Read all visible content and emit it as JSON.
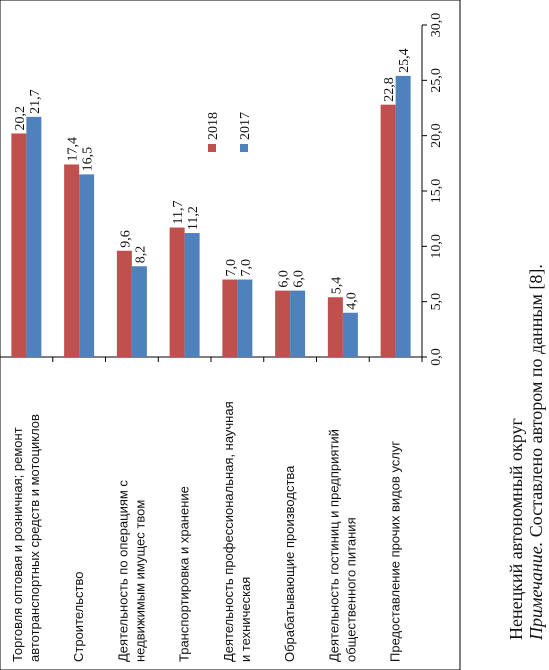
{
  "chart_data": {
    "type": "bar",
    "categories": [
      [
        "Торговля оптовая и розничная; ремонт",
        "автотранспортных  средств и мотоциклов"
      ],
      [
        "Строительство"
      ],
      [
        "Деятельность по операциям  с",
        "недвижимым имущес твом"
      ],
      [
        "Транспортировка  и хранение"
      ],
      [
        "Деятельность профессиональная, научная",
        "и техническая"
      ],
      [
        "Обрабатывающие производства"
      ],
      [
        "Деятельность гостиниц и предприятий",
        "общественного питания"
      ],
      [
        "Предоставление прочих видов услуг"
      ]
    ],
    "series": [
      {
        "name": "2018",
        "color": "#c0504d",
        "values": [
          20.2,
          17.4,
          9.6,
          11.7,
          7.0,
          6.0,
          5.4,
          22.8
        ],
        "labels": [
          "20,2",
          "17,4",
          "9,6",
          "11,7",
          "7,0",
          "6,0",
          "5,4",
          "22,8"
        ]
      },
      {
        "name": "2017",
        "color": "#4f81bd",
        "values": [
          21.7,
          16.5,
          8.2,
          11.2,
          7.0,
          6.0,
          4.0,
          25.4
        ],
        "labels": [
          "21,7",
          "16,5",
          "8,2",
          "11,2",
          "7,0",
          "6,0",
          "4,0",
          "25,4"
        ]
      }
    ],
    "ylim": [
      0,
      30
    ],
    "ticks": [
      0,
      5,
      10,
      15,
      20,
      25,
      30
    ],
    "tick_labels": [
      "0,0",
      "5,0",
      "10,0",
      "15,0",
      "20,0",
      "25,0",
      "30,0"
    ],
    "grid": false,
    "legend_position": "inside-upper-right"
  },
  "caption": {
    "line1": "Ненецкий автономный округ",
    "note_word": "Примечание.",
    "note_rest": " Составлено автором по данным [8]."
  }
}
